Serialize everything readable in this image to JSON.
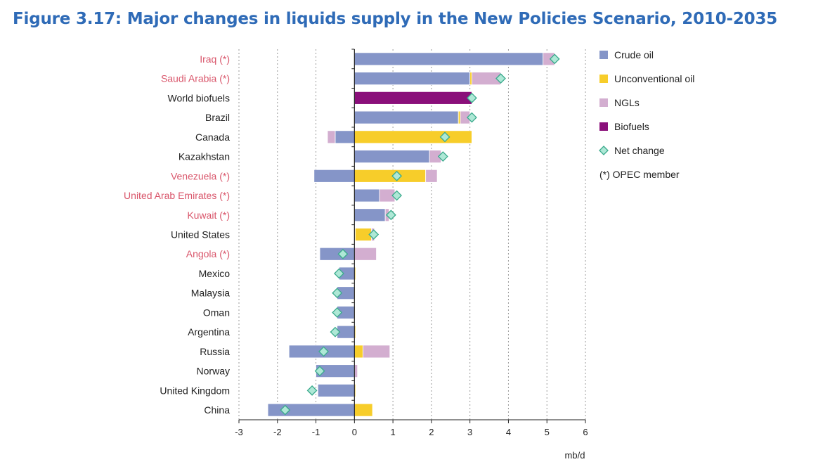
{
  "title": "Figure 3.17: Major changes in liquids supply in the New Policies Scenario, 2010-2035",
  "colors": {
    "crude": "#8595c8",
    "unconventional": "#f7cd2a",
    "ngl": "#d3aed0",
    "biofuels": "#8a0f7a",
    "net": "#aee8d6",
    "net_stroke": "#3aaa8c",
    "opec": "#d9566b",
    "text": "#222222",
    "title": "#2f6bb7"
  },
  "chart_data": {
    "type": "bar",
    "orientation": "horizontal",
    "stacked": true,
    "title": "Figure 3.17: Major changes in liquids supply in the New Policies Scenario, 2010-2035",
    "xlabel": "mb/d",
    "ylabel": "",
    "xlim": [
      -3,
      6
    ],
    "xticks": [
      -3,
      -2,
      -1,
      0,
      1,
      2,
      3,
      4,
      5,
      6
    ],
    "grid": "vertical dotted",
    "legend_position": "right",
    "categories": [
      "Iraq (*)",
      "Saudi Arabia (*)",
      "World biofuels",
      "Brazil",
      "Canada",
      "Kazakhstan",
      "Venezuela (*)",
      "United Arab Emirates (*)",
      "Kuwait (*)",
      "United States",
      "Angola (*)",
      "Mexico",
      "Malaysia",
      "Oman",
      "Argentina",
      "Russia",
      "Norway",
      "United Kingdom",
      "China"
    ],
    "opec": [
      true,
      true,
      false,
      false,
      false,
      false,
      true,
      true,
      true,
      false,
      true,
      false,
      false,
      false,
      false,
      false,
      false,
      false,
      false
    ],
    "series": [
      {
        "name": "Crude oil",
        "key": "crude",
        "values": [
          4.9,
          3.0,
          0,
          2.7,
          -0.5,
          1.95,
          -1.05,
          0.65,
          0.8,
          0.02,
          -0.9,
          -0.4,
          -0.45,
          -0.45,
          -0.45,
          -1.7,
          -1.0,
          -0.95,
          -2.25
        ]
      },
      {
        "name": "Unconventional oil",
        "key": "unconventional",
        "values": [
          0,
          0.05,
          0,
          0.05,
          3.05,
          0,
          1.85,
          0,
          0,
          0.42,
          0,
          0.03,
          0.02,
          0.02,
          0.03,
          0.22,
          0,
          0.03,
          0.47
        ]
      },
      {
        "name": "NGLs",
        "key": "ngl",
        "values": [
          0.3,
          0.75,
          0,
          0.25,
          -0.2,
          0.3,
          0.3,
          0.4,
          0.1,
          0.08,
          0.57,
          0,
          0,
          0,
          0,
          0.7,
          0.08,
          0,
          0
        ]
      },
      {
        "name": "Biofuels",
        "key": "biofuels",
        "values": [
          0,
          0,
          3.05,
          0,
          0,
          0,
          0,
          0,
          0,
          0,
          0,
          0,
          0,
          0,
          0,
          0,
          0,
          0,
          0
        ]
      }
    ],
    "net_change": [
      5.2,
      3.8,
      3.05,
      3.05,
      2.35,
      2.3,
      1.1,
      1.1,
      0.95,
      0.5,
      -0.3,
      -0.4,
      -0.45,
      -0.45,
      -0.5,
      -0.8,
      -0.9,
      -1.1,
      -1.8
    ],
    "legend": [
      {
        "label": "Crude oil",
        "key": "crude",
        "kind": "square"
      },
      {
        "label": "Unconventional oil",
        "key": "unconventional",
        "kind": "square"
      },
      {
        "label": "NGLs",
        "key": "ngl",
        "kind": "square"
      },
      {
        "label": "Biofuels",
        "key": "biofuels",
        "kind": "square"
      },
      {
        "label": "Net change",
        "key": "net",
        "kind": "diamond"
      },
      {
        "label": "(*) OPEC member",
        "key": "opec",
        "kind": "text"
      }
    ]
  }
}
